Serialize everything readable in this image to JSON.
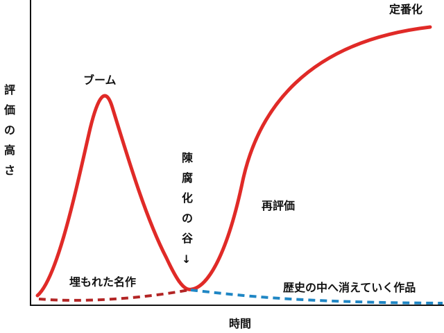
{
  "diagram": {
    "axes": {
      "y_label": "評価の高さ",
      "x_label": "時間"
    },
    "labels": {
      "boom": "ブーム",
      "standard": "定番化",
      "valley": "陳腐化の谷",
      "valley_arrow": "↓",
      "reevaluation": "再評価",
      "buried": "埋もれた名作",
      "fading": "歴史の中へ消えていく作品"
    },
    "colors": {
      "main_curve": "#e02a27",
      "buried_curve": "#b32525",
      "fading_curve": "#1f86c4",
      "axis": "#111111"
    }
  }
}
